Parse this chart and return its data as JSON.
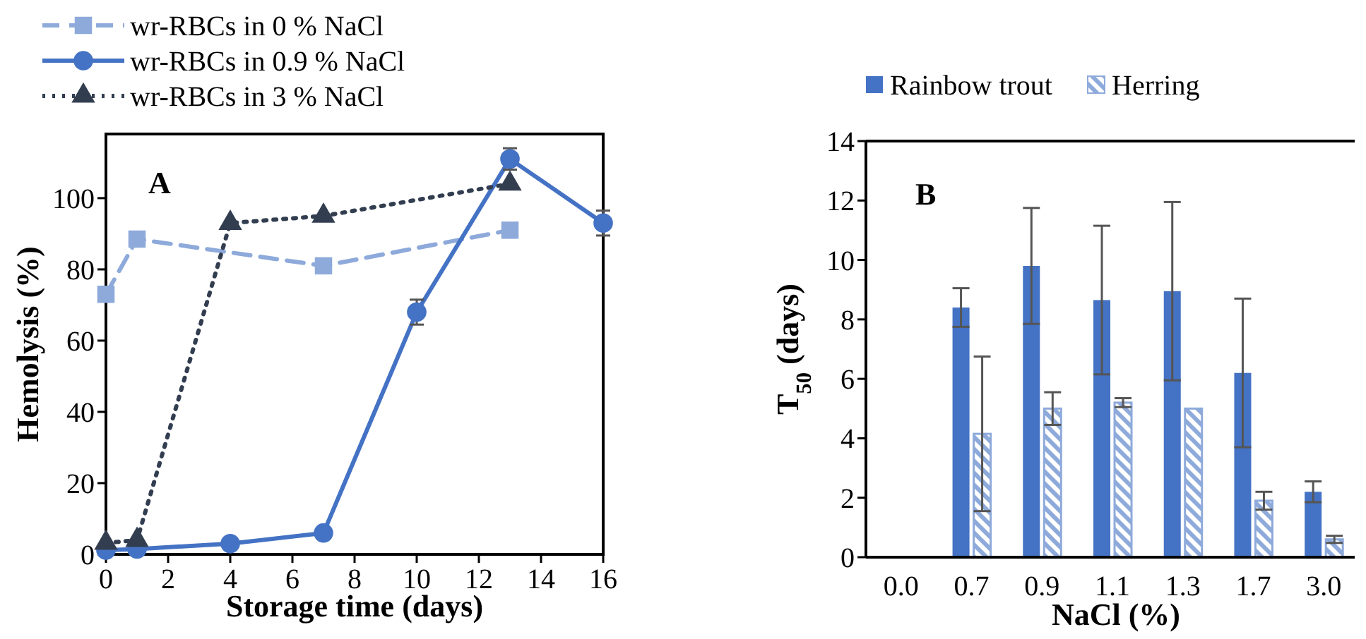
{
  "chart_data": [
    {
      "type": "line",
      "title": "A",
      "xlabel": "Storage time (days)",
      "ylabel": "Hemolysis (%)",
      "xlim": [
        0,
        16
      ],
      "xticks": [
        0,
        2,
        4,
        6,
        8,
        10,
        12,
        14,
        16
      ],
      "ylim": [
        0,
        118
      ],
      "yticks": [
        0,
        20,
        40,
        60,
        80,
        100
      ],
      "legend": "top",
      "series": [
        {
          "name": "wr-RBCs in 0 % NaCl",
          "color": "#8eaadb",
          "x": [
            0,
            1,
            7,
            13
          ],
          "values": [
            73,
            88.5,
            81,
            91
          ],
          "marker": "square",
          "line_style": "dashed"
        },
        {
          "name": "wr-RBCs in 0.9 % NaCl",
          "color": "#4472c4",
          "x": [
            0,
            1,
            4,
            7,
            10,
            13,
            16
          ],
          "values": [
            1.2,
            1.5,
            3,
            6,
            68,
            111,
            93
          ],
          "errors": [
            null,
            null,
            null,
            null,
            3.5,
            3,
            3.5
          ],
          "marker": "circle",
          "line_style": "solid"
        },
        {
          "name": "wr-RBCs in 3 % NaCl",
          "color": "#323e50",
          "x": [
            0,
            1,
            4,
            7,
            13
          ],
          "values": [
            3.2,
            4,
            93,
            95,
            104
          ],
          "marker": "triangle",
          "line_style": "dotted"
        }
      ]
    },
    {
      "type": "bar",
      "title": "B",
      "xlabel": "NaCl (%)",
      "ylabel": "T$_{50}$ (days)",
      "categories": [
        "0.0",
        "0.7",
        "0.9",
        "1.1",
        "1.3",
        "1.7",
        "3.0"
      ],
      "ylim": [
        0,
        14
      ],
      "yticks": [
        0,
        2,
        4,
        6,
        8,
        10,
        12,
        14
      ],
      "legend": "top",
      "series": [
        {
          "name": "Rainbow trout",
          "color": "#4472c4",
          "values": [
            0,
            8.4,
            9.8,
            8.65,
            8.95,
            6.2,
            2.2
          ],
          "errors": [
            null,
            0.65,
            1.95,
            2.5,
            3,
            2.5,
            0.35
          ]
        },
        {
          "name": "Herring",
          "color": "#8eaadb",
          "values": [
            0,
            4.15,
            5,
            5.2,
            5,
            1.9,
            0.6
          ],
          "errors": [
            null,
            2.6,
            0.55,
            0.15,
            null,
            0.3,
            0.12
          ]
        }
      ]
    }
  ]
}
